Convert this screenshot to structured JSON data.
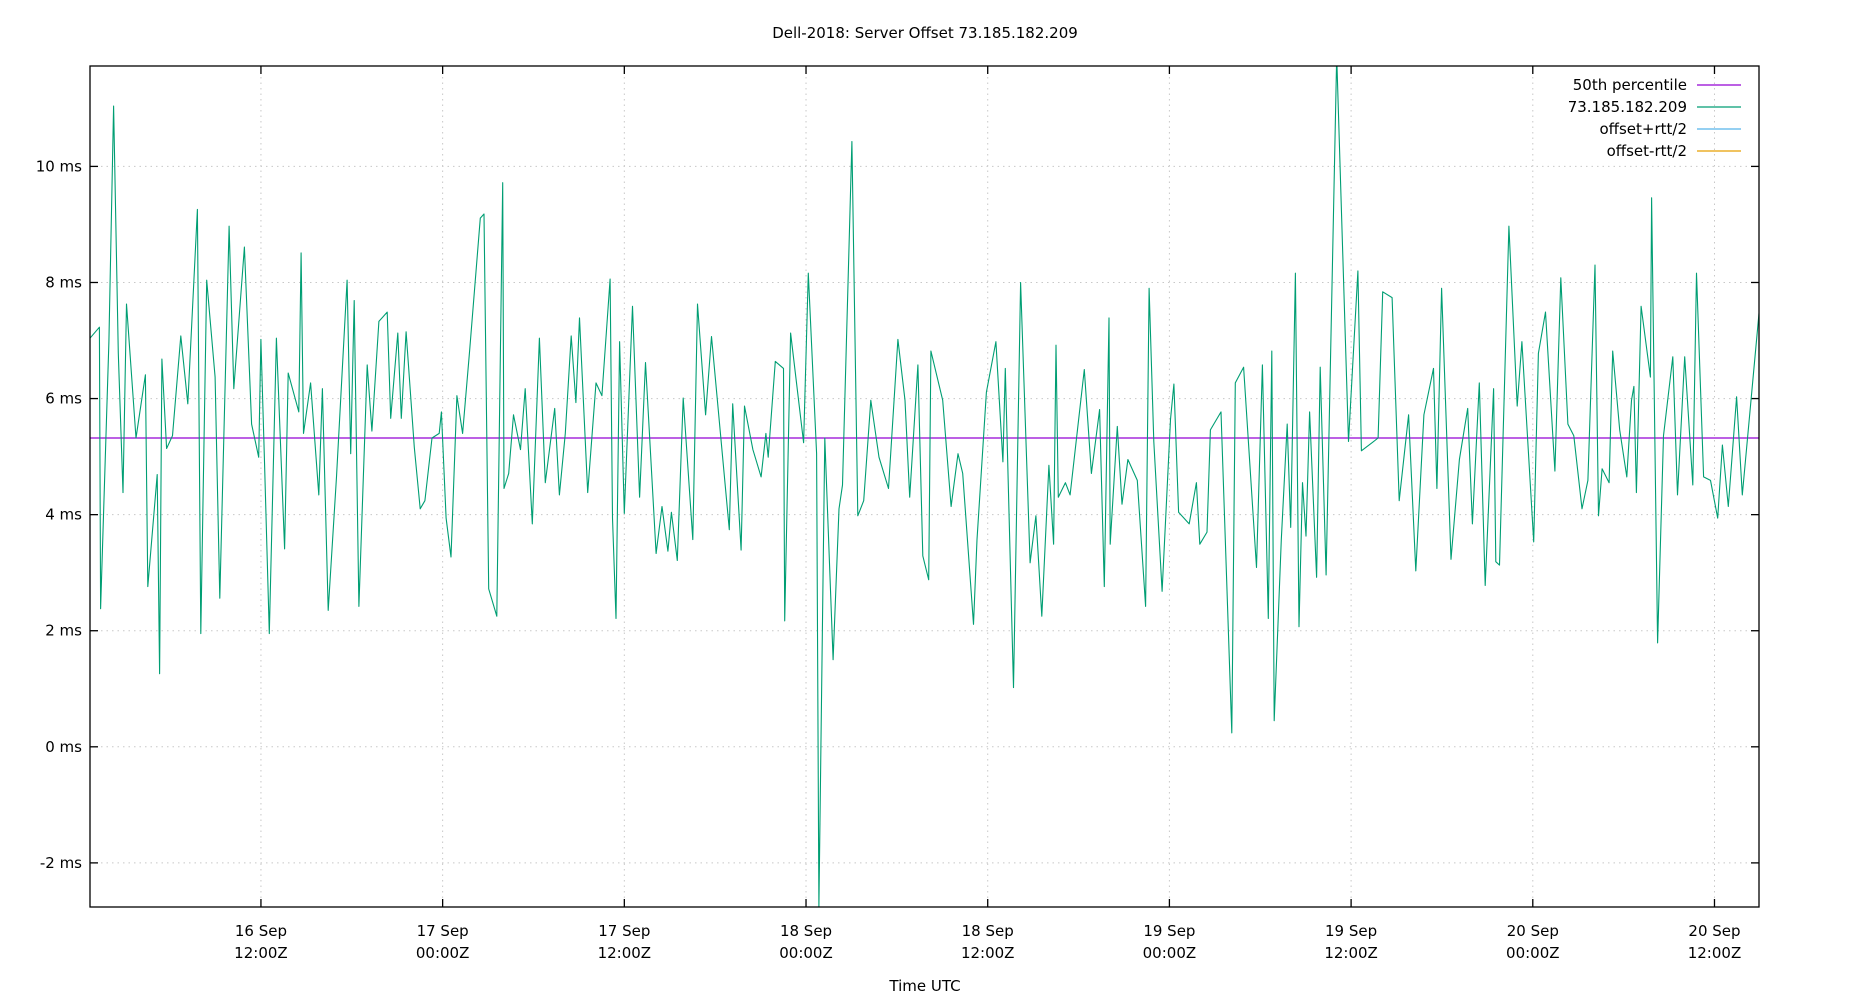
{
  "chart_data": {
    "type": "line",
    "title": "Dell-2018: Server Offset 73.185.182.209",
    "xlabel": "Time UTC",
    "ylabel": "",
    "x_unit": "hours since 16 Sep 00:00Z",
    "xlim": [
      0.71,
      110.94
    ],
    "ylim": [
      -2.76,
      11.73
    ],
    "grid": true,
    "legend_position": "top-right",
    "yticks": [
      {
        "value": -2,
        "label": "-2 ms"
      },
      {
        "value": 0,
        "label": "0 ms"
      },
      {
        "value": 2,
        "label": "2 ms"
      },
      {
        "value": 4,
        "label": "4 ms"
      },
      {
        "value": 6,
        "label": "6 ms"
      },
      {
        "value": 8,
        "label": "8 ms"
      },
      {
        "value": 10,
        "label": "10 ms"
      }
    ],
    "xticks": [
      {
        "value": 12,
        "label": [
          "16 Sep",
          "12:00Z"
        ]
      },
      {
        "value": 24,
        "label": [
          "17 Sep",
          "00:00Z"
        ]
      },
      {
        "value": 36,
        "label": [
          "17 Sep",
          "12:00Z"
        ]
      },
      {
        "value": 48,
        "label": [
          "18 Sep",
          "00:00Z"
        ]
      },
      {
        "value": 60,
        "label": [
          "18 Sep",
          "12:00Z"
        ]
      },
      {
        "value": 72,
        "label": [
          "19 Sep",
          "00:00Z"
        ]
      },
      {
        "value": 84,
        "label": [
          "19 Sep",
          "12:00Z"
        ]
      },
      {
        "value": 96,
        "label": [
          "20 Sep",
          "00:00Z"
        ]
      },
      {
        "value": 108,
        "label": [
          "20 Sep",
          "12:00Z"
        ]
      }
    ],
    "series": [
      {
        "name": "50th percentile",
        "color": "#9400d3",
        "type": "hline",
        "value": 5.32
      },
      {
        "name": "73.185.182.209",
        "color": "#009e73",
        "x": [
          0.71,
          1.33,
          1.41,
          1.96,
          2.27,
          2.58,
          2.89,
          3.12,
          3.75,
          4.37,
          4.53,
          5.15,
          5.31,
          5.46,
          5.77,
          6.16,
          6.71,
          7.17,
          7.8,
          8.03,
          8.42,
          8.97,
          9.28,
          9.9,
          10.21,
          10.91,
          11.38,
          11.85,
          12.0,
          12.24,
          12.55,
          13.02,
          13.56,
          13.8,
          14.5,
          14.65,
          14.81,
          15.28,
          15.82,
          16.06,
          16.44,
          16.99,
          17.69,
          17.93,
          18.16,
          18.47,
          19.02,
          19.33,
          19.79,
          20.34,
          20.57,
          21.04,
          21.27,
          21.59,
          22.13,
          22.52,
          22.83,
          23.3,
          23.77,
          23.92,
          24.23,
          24.55,
          24.94,
          25.32,
          25.79,
          26.49,
          26.73,
          27.04,
          27.58,
          27.97,
          28.05,
          28.36,
          28.68,
          29.14,
          29.45,
          29.92,
          30.39,
          30.78,
          31.4,
          31.71,
          32.1,
          32.49,
          32.8,
          33.04,
          33.58,
          34.13,
          34.52,
          35.06,
          35.22,
          35.45,
          35.69,
          36.0,
          36.54,
          37.01,
          37.4,
          38.1,
          38.49,
          38.88,
          39.11,
          39.5,
          39.89,
          40.52,
          40.83,
          41.37,
          41.76,
          42.93,
          43.16,
          43.71,
          43.94,
          44.49,
          45.03,
          45.35,
          45.5,
          45.97,
          46.51,
          46.59,
          46.98,
          47.84,
          48.15,
          48.7,
          48.85,
          49.24,
          49.79,
          50.18,
          50.41,
          51.03,
          51.42,
          51.81,
          52.28,
          52.82,
          53.45,
          54.07,
          54.54,
          54.85,
          55.39,
          55.71,
          56.1,
          56.25,
          57.03,
          57.58,
          58.04,
          58.35,
          59.06,
          59.29,
          59.91,
          60.54,
          61.0,
          61.16,
          61.7,
          62.17,
          62.8,
          63.18,
          63.57,
          64.04,
          64.35,
          64.51,
          64.66,
          65.13,
          65.44,
          66.38,
          66.85,
          67.39,
          67.7,
          68.01,
          68.09,
          68.56,
          68.87,
          69.26,
          69.88,
          70.43,
          70.66,
          70.97,
          71.52,
          72.07,
          72.3,
          72.61,
          73.31,
          73.78,
          74.01,
          74.48,
          74.71,
          75.41,
          76.12,
          76.35,
          76.9,
          77.75,
          78.14,
          78.53,
          78.76,
          78.92,
          79.39,
          79.78,
          80.01,
          80.32,
          80.56,
          80.79,
          81.02,
          81.26,
          81.72,
          81.96,
          82.35,
          83.05,
          83.83,
          84.45,
          84.68,
          85.39,
          85.78,
          86.09,
          86.71,
          87.18,
          87.8,
          88.27,
          88.81,
          89.44,
          89.67,
          89.98,
          90.6,
          91.15,
          91.7,
          92.01,
          92.47,
          92.86,
          93.41,
          93.56,
          93.8,
          94.42,
          94.97,
          95.28,
          96.06,
          96.37,
          96.84,
          97.46,
          97.85,
          98.32,
          98.71,
          99.25,
          99.64,
          100.11,
          100.34,
          100.58,
          101.04,
          101.28,
          101.74,
          102.21,
          102.52,
          102.68,
          102.84,
          103.15,
          103.77,
          103.85,
          104.24,
          104.63,
          105.25,
          105.56,
          106.03,
          106.57,
          106.81,
          107.28,
          107.74,
          108.21,
          108.52,
          108.91,
          109.46,
          109.84,
          110.94
        ],
        "y": [
          7.04,
          7.23,
          2.38,
          6.98,
          11.04,
          6.78,
          4.38,
          7.63,
          5.32,
          6.41,
          2.76,
          4.69,
          1.26,
          6.68,
          5.14,
          5.36,
          7.08,
          5.91,
          9.26,
          1.95,
          8.04,
          6.37,
          2.56,
          8.97,
          6.17,
          8.61,
          5.56,
          4.99,
          7.02,
          4.85,
          1.95,
          7.04,
          3.41,
          6.44,
          5.77,
          8.51,
          5.4,
          6.27,
          4.34,
          6.17,
          2.35,
          4.65,
          8.04,
          5.05,
          7.69,
          2.42,
          6.58,
          5.44,
          7.33,
          7.49,
          5.66,
          7.13,
          5.66,
          7.15,
          5.16,
          4.1,
          4.24,
          5.32,
          5.4,
          5.77,
          3.94,
          3.27,
          6.05,
          5.4,
          6.84,
          9.11,
          9.18,
          2.72,
          2.25,
          9.72,
          4.45,
          4.71,
          5.72,
          5.12,
          6.17,
          3.84,
          7.04,
          4.55,
          5.83,
          4.34,
          5.4,
          7.08,
          5.93,
          7.39,
          4.38,
          6.27,
          6.05,
          8.06,
          3.94,
          2.21,
          6.98,
          4.02,
          7.59,
          4.3,
          6.62,
          3.33,
          4.14,
          3.37,
          4.04,
          3.21,
          6.01,
          3.57,
          7.63,
          5.72,
          7.07,
          3.74,
          5.91,
          3.39,
          5.87,
          5.12,
          4.65,
          5.4,
          4.99,
          6.64,
          6.52,
          2.17,
          7.13,
          5.24,
          8.16,
          5.05,
          -2.76,
          5.32,
          1.5,
          4.1,
          4.51,
          10.43,
          3.98,
          4.24,
          5.97,
          4.99,
          4.45,
          7.02,
          5.97,
          4.3,
          6.58,
          3.29,
          2.88,
          6.82,
          5.97,
          4.14,
          5.05,
          4.71,
          2.11,
          3.57,
          6.11,
          6.98,
          4.91,
          6.52,
          1.02,
          8.0,
          3.17,
          3.98,
          2.25,
          4.85,
          3.49,
          6.92,
          4.3,
          4.55,
          4.34,
          6.5,
          4.71,
          5.81,
          2.76,
          7.39,
          3.49,
          5.52,
          4.18,
          4.95,
          4.59,
          2.42,
          7.9,
          5.26,
          2.68,
          5.64,
          6.25,
          4.04,
          3.84,
          4.55,
          3.49,
          3.7,
          5.46,
          5.77,
          0.24,
          6.27,
          6.54,
          3.09,
          6.58,
          2.21,
          6.82,
          0.45,
          3.57,
          5.56,
          3.78,
          8.16,
          2.07,
          4.55,
          3.63,
          5.77,
          2.92,
          6.54,
          2.96,
          11.9,
          5.26,
          8.2,
          5.1,
          5.24,
          5.32,
          7.84,
          7.74,
          4.24,
          5.72,
          3.03,
          5.72,
          6.52,
          4.45,
          7.9,
          3.23,
          4.95,
          5.83,
          3.84,
          6.27,
          2.78,
          6.17,
          3.19,
          3.13,
          8.97,
          5.87,
          6.98,
          3.53,
          6.78,
          7.49,
          4.75,
          8.08,
          5.56,
          5.36,
          4.1,
          4.59,
          8.3,
          3.98,
          4.79,
          4.55,
          6.82,
          5.46,
          4.65,
          5.97,
          6.21,
          4.38,
          7.59,
          6.37,
          9.46,
          1.79,
          5.36,
          6.72,
          4.34,
          6.72,
          4.51,
          8.16,
          4.65,
          4.59,
          3.94,
          5.2,
          4.14,
          6.03,
          4.34,
          7.47
        ]
      },
      {
        "name": "offset+rtt/2",
        "color": "#56b4e9",
        "type": "legend-only"
      },
      {
        "name": "offset-rtt/2",
        "color": "#e69f00",
        "type": "legend-only"
      }
    ]
  }
}
